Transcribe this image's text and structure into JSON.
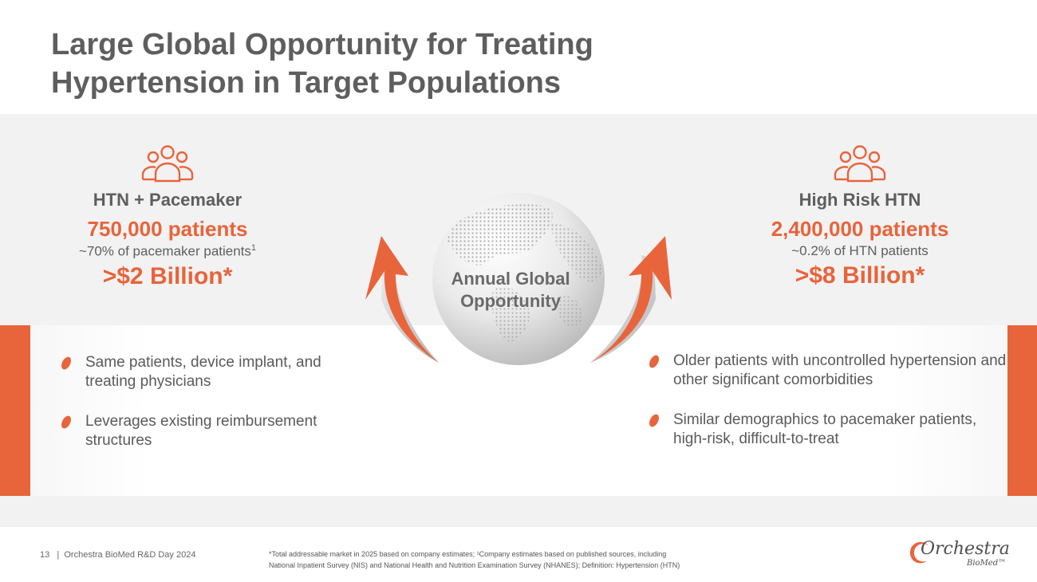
{
  "title": "Large Global Opportunity for Treating Hypertension in Target Populations",
  "left": {
    "icon": "people-group-icon",
    "heading": "HTN + Pacemaker",
    "patients": "750,000 patients",
    "sub_text": "~70% of pacemaker patients",
    "sub_sup": "1",
    "billion": ">$2 Billion*",
    "bullets": [
      "Same patients, device implant, and treating physicians",
      "Leverages existing reimbursement structures"
    ]
  },
  "center": {
    "label_line1": "Annual Global",
    "label_line2": "Opportunity"
  },
  "right": {
    "icon": "people-group-icon",
    "heading": "High Risk HTN",
    "patients": "2,400,000 patients",
    "sub_text": "~0.2% of HTN patients",
    "billion": ">$8 Billion*",
    "bullets": [
      "Older patients with uncontrolled hypertension and other significant comorbidities",
      "Similar demographics to pacemaker patients, high-risk, difficult-to-treat"
    ]
  },
  "footer": {
    "page_info": "13   |  Orchestra BioMed R&D Day 2024",
    "note_line1": "*Total addressable market in 2025 based on company estimates; ¹Company estimates based on published sources, including",
    "note_line2": "National Inpatient Survey (NIS) and National Health and Nutrition Examination Survey (NHANES); Definition: Hypertension (HTN)",
    "logo_main": "Orchestra",
    "logo_sub": "BioMed™"
  },
  "colors": {
    "accent": "#e8643a",
    "text_gray": "#5e5e5e",
    "band": "#f2f2f3"
  }
}
